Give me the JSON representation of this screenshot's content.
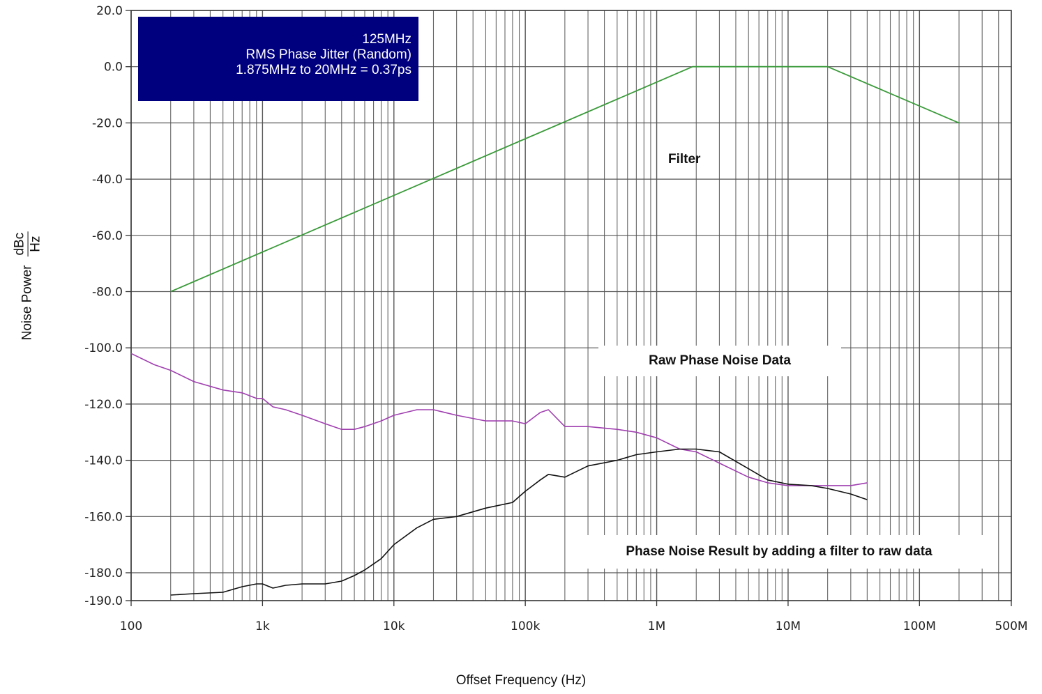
{
  "chart_data": {
    "type": "line",
    "xlabel": "Offset Frequency (Hz)",
    "ylabel_text": "Noise Power",
    "ylabel_unit_num": "dBc",
    "ylabel_unit_den": "Hz",
    "x_scale": "log",
    "xlim": [
      100,
      500000000
    ],
    "ylim": [
      -190,
      20
    ],
    "grid": true,
    "x_ticks": [
      {
        "value": 100,
        "label": "100"
      },
      {
        "value": 1000,
        "label": "1k"
      },
      {
        "value": 10000,
        "label": "10k"
      },
      {
        "value": 100000,
        "label": "100k"
      },
      {
        "value": 1000000,
        "label": "1M"
      },
      {
        "value": 10000000,
        "label": "10M"
      },
      {
        "value": 100000000,
        "label": "100M"
      },
      {
        "value": 500000000,
        "label": "500M"
      }
    ],
    "y_ticks": [
      {
        "value": 20,
        "label": "20.0"
      },
      {
        "value": 0,
        "label": "0.0"
      },
      {
        "value": -20,
        "label": "-20.0"
      },
      {
        "value": -40,
        "label": "-40.0"
      },
      {
        "value": -60,
        "label": "-60.0"
      },
      {
        "value": -80,
        "label": "-80.0"
      },
      {
        "value": -100,
        "label": "-100.0"
      },
      {
        "value": -120,
        "label": "-120.0"
      },
      {
        "value": -140,
        "label": "-140.0"
      },
      {
        "value": -160,
        "label": "-160.0"
      },
      {
        "value": -180,
        "label": "-180.0"
      },
      {
        "value": -190,
        "label": "-190.0"
      }
    ],
    "series": [
      {
        "key": "filter",
        "label": "Filter",
        "color": "#3a9a3a",
        "x": [
          200,
          1875000,
          20000000,
          200000000
        ],
        "y": [
          -80,
          0,
          0,
          -20
        ]
      },
      {
        "key": "raw",
        "label": "Raw Phase Noise Data",
        "color": "#a040b0",
        "x": [
          100,
          150,
          200,
          300,
          500,
          700,
          900,
          1000,
          1200,
          1500,
          2000,
          3000,
          4000,
          5000,
          6000,
          8000,
          10000,
          15000,
          20000,
          30000,
          50000,
          80000,
          100000,
          130000,
          150000,
          200000,
          300000,
          500000,
          700000,
          1000000,
          1500000,
          2000000,
          3000000,
          5000000,
          7000000,
          10000000,
          15000000,
          20000000,
          30000000,
          40000000
        ],
        "y": [
          -102,
          -106,
          -108,
          -112,
          -115,
          -116,
          -118,
          -118,
          -121,
          -122,
          -124,
          -127,
          -129,
          -129,
          -128,
          -126,
          -124,
          -122,
          -122,
          -124,
          -126,
          -126,
          -127,
          -123,
          -122,
          -128,
          -128,
          -129,
          -130,
          -132,
          -136,
          -137,
          -141,
          -146,
          -148,
          -149,
          -149,
          -149,
          -149,
          -148
        ]
      },
      {
        "key": "result",
        "label": "Phase Noise Result by adding a filter to raw data",
        "color": "#111111",
        "x": [
          200,
          300,
          500,
          700,
          900,
          1000,
          1200,
          1500,
          2000,
          3000,
          4000,
          5000,
          6000,
          8000,
          10000,
          15000,
          20000,
          30000,
          50000,
          80000,
          100000,
          130000,
          150000,
          200000,
          300000,
          500000,
          700000,
          1000000,
          1500000,
          2000000,
          3000000,
          5000000,
          7000000,
          10000000,
          15000000,
          20000000,
          30000000,
          40000000
        ],
        "y": [
          -188,
          -187.5,
          -187,
          -185,
          -184,
          -184,
          -185.5,
          -184.5,
          -184,
          -184,
          -183,
          -181,
          -179,
          -175,
          -170,
          -164,
          -161,
          -160,
          -157,
          -155,
          -151,
          -147,
          -145,
          -146,
          -142,
          -140,
          -138,
          -137,
          -136,
          -136,
          -137,
          -143,
          -147,
          -148.5,
          -149,
          -150,
          -152,
          -154
        ]
      }
    ],
    "annotations": {
      "info_line1": "125MHz",
      "info_line2": "RMS Phase Jitter (Random)",
      "info_line3": "1.875MHz to 20MHz = 0.37ps",
      "filter_label": "Filter",
      "raw_label": "Raw Phase Noise Data",
      "result_label": "Phase Noise Result by adding a filter to raw data",
      "info_bg_color": "#00007e"
    }
  }
}
